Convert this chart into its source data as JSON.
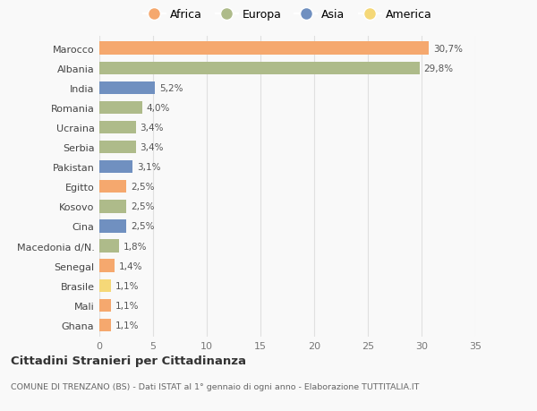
{
  "categories": [
    "Ghana",
    "Mali",
    "Brasile",
    "Senegal",
    "Macedonia d/N.",
    "Cina",
    "Kosovo",
    "Egitto",
    "Pakistan",
    "Serbia",
    "Ucraina",
    "Romania",
    "India",
    "Albania",
    "Marocco"
  ],
  "values": [
    1.1,
    1.1,
    1.1,
    1.4,
    1.8,
    2.5,
    2.5,
    2.5,
    3.1,
    3.4,
    3.4,
    4.0,
    5.2,
    29.8,
    30.7
  ],
  "labels": [
    "1,1%",
    "1,1%",
    "1,1%",
    "1,4%",
    "1,8%",
    "2,5%",
    "2,5%",
    "2,5%",
    "3,1%",
    "3,4%",
    "3,4%",
    "4,0%",
    "5,2%",
    "29,8%",
    "30,7%"
  ],
  "continents": [
    "Africa",
    "Africa",
    "America",
    "Africa",
    "Europa",
    "Asia",
    "Europa",
    "Africa",
    "Asia",
    "Europa",
    "Europa",
    "Europa",
    "Asia",
    "Europa",
    "Africa"
  ],
  "continent_colors": {
    "Africa": "#F5A86E",
    "Europa": "#AEBB8A",
    "Asia": "#7090C0",
    "America": "#F5D878"
  },
  "legend_order": [
    "Africa",
    "Europa",
    "Asia",
    "America"
  ],
  "xlim": [
    0,
    35
  ],
  "xticks": [
    0,
    5,
    10,
    15,
    20,
    25,
    30,
    35
  ],
  "title": "Cittadini Stranieri per Cittadinanza",
  "subtitle": "COMUNE DI TRENZANO (BS) - Dati ISTAT al 1° gennaio di ogni anno - Elaborazione TUTTITALIA.IT",
  "background_color": "#f9f9f9",
  "bar_height": 0.65,
  "grid_color": "#e0e0e0"
}
